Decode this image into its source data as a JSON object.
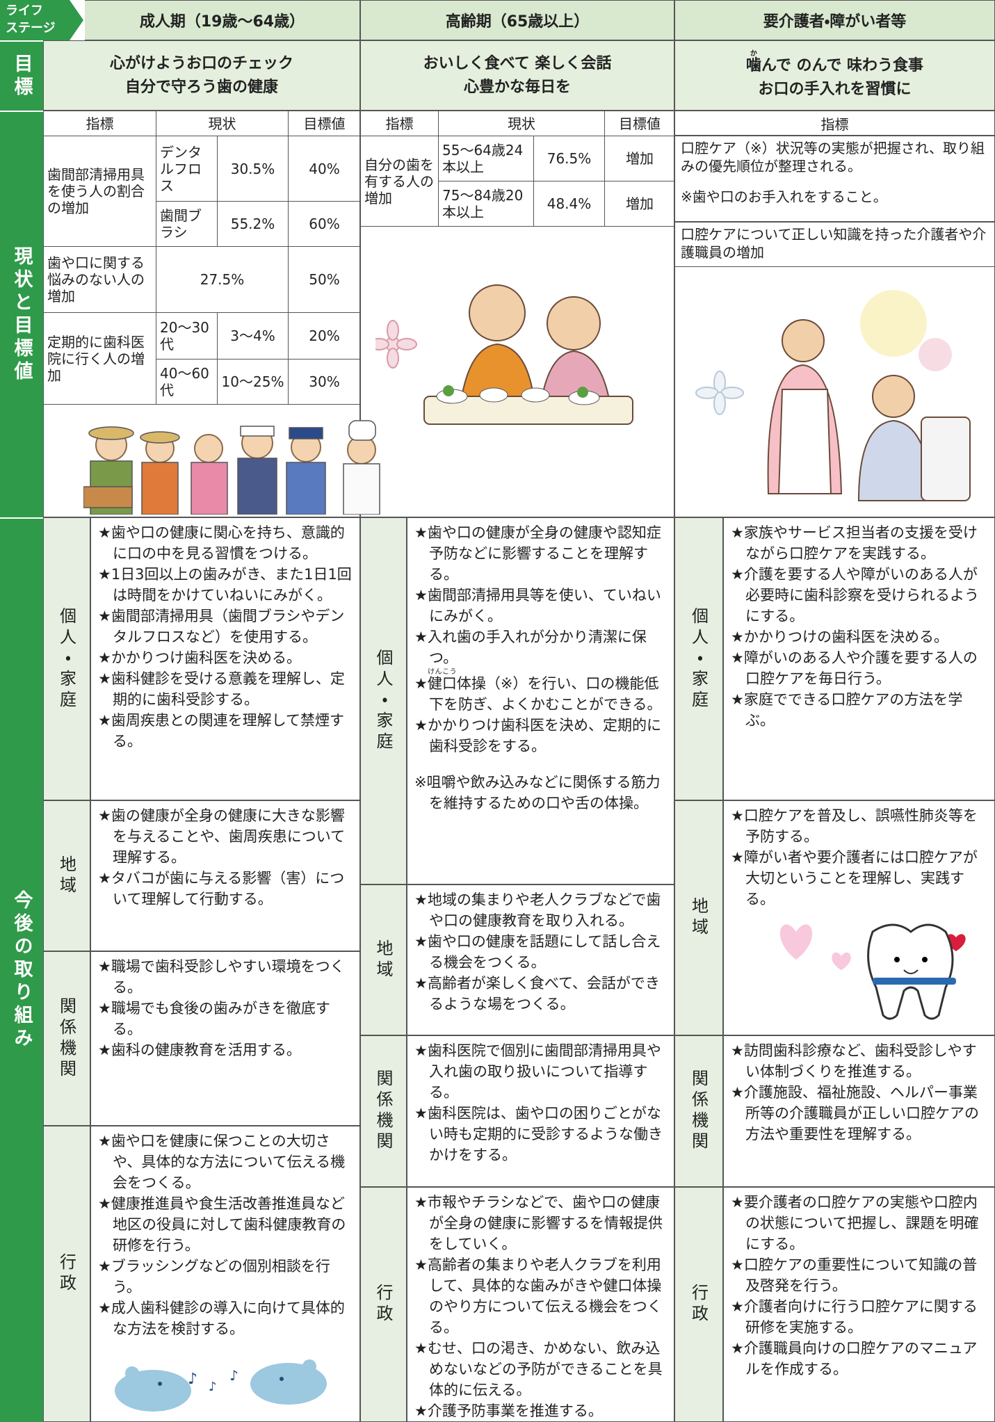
{
  "life_stage": [
    "ライフ",
    "ステージ"
  ],
  "row_labels": {
    "goal": "目標",
    "status": "現状と目標値",
    "actions": "今後の取り組み"
  },
  "stages": [
    {
      "title": "成人期（19歳～64歳）",
      "goal": [
        "心がけようお口のチェック",
        "自分で守ろう歯の健康"
      ],
      "status": {
        "headers": [
          "指標",
          "現状",
          "目標値"
        ],
        "rows": [
          {
            "indicator": "歯間部清掃用具を使う人の割合の増加",
            "sub": [
              [
                "デンタルフロス",
                "30.5%",
                "40%"
              ],
              [
                "歯間ブラシ",
                "55.2%",
                "60%"
              ]
            ]
          },
          {
            "indicator": "歯や口に関する悩みのない人の増加",
            "current": "27.5%",
            "target": "50%"
          },
          {
            "indicator": "定期的に歯科医院に行く人の増加",
            "sub": [
              [
                "20～30代",
                "3～4%",
                "20%"
              ],
              [
                "40～60代",
                "10～25%",
                "30%"
              ]
            ]
          }
        ]
      },
      "actions": [
        {
          "label": "個人・家庭",
          "items": [
            "★歯や口の健康に関心を持ち、意識的に口の中を見る習慣をつける。",
            "★1日3回以上の歯みがき、また1日1回は時間をかけていねいにみがく。",
            "★歯間部清掃用具（歯間ブラシやデンタルフロスなど）を使用する。",
            "★かかりつけ歯科医を決める。",
            "★歯科健診を受ける意義を理解し、定期的に歯科受診する。",
            "★歯周疾患との関連を理解して禁煙する。"
          ]
        },
        {
          "label": "地域",
          "items": [
            "★歯の健康が全身の健康に大きな影響を与えることや、歯周疾患について理解する。",
            "★タバコが歯に与える影響（害）について理解して行動する。"
          ]
        },
        {
          "label": "関係機関",
          "items": [
            "★職場で歯科受診しやすい環境をつくる。",
            "★職場でも食後の歯みがきを徹底する。",
            "★歯科の健康教育を活用する。"
          ]
        },
        {
          "label": "行政",
          "items": [
            "★歯や口を健康に保つことの大切さや、具体的な方法について伝える機会をつくる。",
            "★健康推進員や食生活改善推進員など地区の役員に対して歯科健康教育の研修を行う。",
            "★ブラッシングなどの個別相談を行う。",
            "★成人歯科健診の導入に向けて具体的な方法を検討する。"
          ]
        }
      ]
    },
    {
      "title": "高齢期（65歳以上）",
      "goal": [
        "おいしく食べて 楽しく会話",
        "心豊かな毎日を"
      ],
      "status": {
        "headers": [
          "指標",
          "現状",
          "目標値"
        ],
        "rows": [
          {
            "indicator": "自分の歯を有する人の増加",
            "sub": [
              [
                "55～64歳24本以上",
                "76.5%",
                "増加"
              ],
              [
                "75～84歳20本以上",
                "48.4%",
                "増加"
              ]
            ]
          }
        ]
      },
      "actions": [
        {
          "label": "個人・家庭",
          "items": [
            "★歯や口の健康が全身の健康や認知症予防などに影響することを理解する。",
            "★歯間部清掃用具等を使い、ていねいにみがく。",
            "★入れ歯の手入れが分かり清潔に保つ。",
            [
              "★",
              {
                "base": "健口",
                "rt": "けんこう"
              },
              "体操（※）を行い、口の機能低下を防ぎ、よくかむことができる。"
            ],
            "★かかりつけ歯科医を決め、定期的に歯科受診をする。"
          ],
          "note": "※咀嚼や飲み込みなどに関係する筋力を維持するための口や舌の体操。"
        },
        {
          "label": "地域",
          "items": [
            "★地域の集まりや老人クラブなどで歯や口の健康教育を取り入れる。",
            "★歯や口の健康を話題にして話し合える機会をつくる。",
            "★高齢者が楽しく食べて、会話ができるような場をつくる。"
          ]
        },
        {
          "label": "関係機関",
          "items": [
            "★歯科医院で個別に歯間部清掃用具や入れ歯の取り扱いについて指導する。",
            "★歯科医院は、歯や口の困りごとがない時も定期的に受診するような働きかけをする。"
          ]
        },
        {
          "label": "行政",
          "items": [
            "★市報やチラシなどで、歯や口の健康が全身の健康に影響するを情報提供をしていく。",
            "★高齢者の集まりや老人クラブを利用して、具体的な歯みがきや健口体操のやり方について伝える機会をつくる。",
            "★むせ、口の渇き、かめない、飲み込めないなどの予防ができることを具体的に伝える。",
            "★介護予防事業を推進する。"
          ]
        }
      ]
    },
    {
      "title": "要介護者・障がい者等",
      "goal": [
        [
          {
            "base": "噛",
            "rt": "か"
          },
          "んで のんで 味わう食事"
        ],
        "お口の手入れを習慣に"
      ],
      "status": {
        "headers": [
          "指標"
        ],
        "notes": [
          [
            "口腔ケア（※）状況等の実態が把握され、取り組みの優先順位が整理される。",
            "※歯や口のお手入れをすること。"
          ],
          [
            "口腔ケアについて正しい知識を持った介護者や介護職員の増加"
          ]
        ]
      },
      "actions": [
        {
          "label": "個人・家庭",
          "items": [
            "★家族やサービス担当者の支援を受けながら口腔ケアを実践する。",
            "★介護を要する人や障がいのある人が必要時に歯科診察を受けられるようにする。",
            "★かかりつけの歯科医を決める。",
            "★障がいのある人や介護を要する人の口腔ケアを毎日行う。",
            "★家庭でできる口腔ケアの方法を学ぶ。"
          ]
        },
        {
          "label": "地域",
          "items": [
            "★口腔ケアを普及し、誤嚥性肺炎等を予防する。",
            "★障がい者や要介護者には口腔ケアが大切ということを理解し、実践する。"
          ]
        },
        {
          "label": "関係機関",
          "items": [
            "★訪問歯科診療など、歯科受診しやすい体制づくりを推進する。",
            "★介護施設、福祉施設、ヘルパー事業所等の介護職員が正しい口腔ケアの方法や重要性を理解する。"
          ]
        },
        {
          "label": "行政",
          "items": [
            "★要介護者の口腔ケアの実態や口腔内の状態について把握し、課題を明確にする。",
            "★口腔ケアの重要性について知識の普及啓発を行う。",
            "★介護者向けに行う口腔ケアに関する研修を実施する。",
            "★介護職員向けの口腔ケアのマニュアルを作成する。"
          ]
        }
      ]
    }
  ]
}
